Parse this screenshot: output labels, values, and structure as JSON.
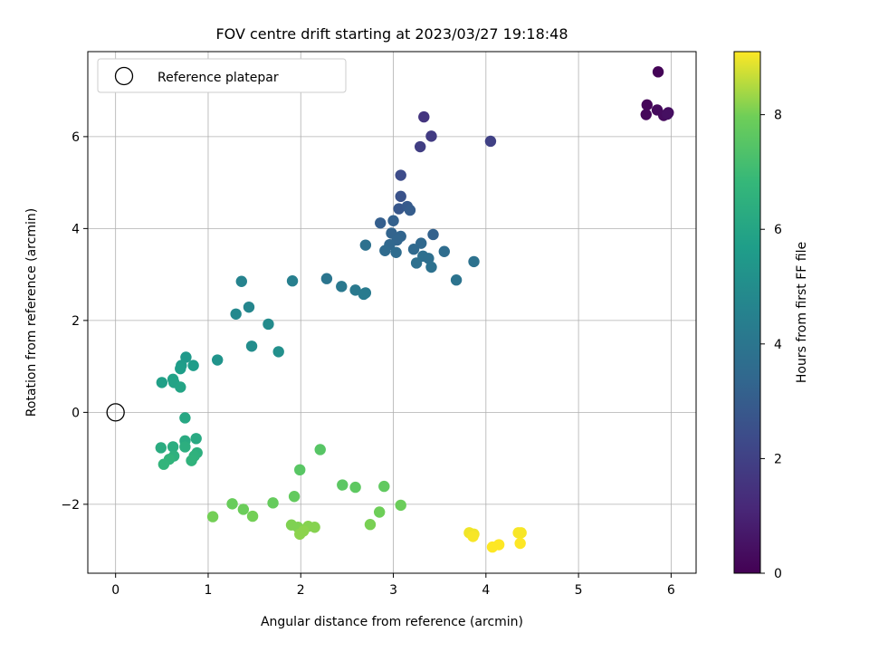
{
  "chart_data": {
    "type": "scatter",
    "title": "FOV centre drift starting at 2023/03/27 19:18:48",
    "xlabel": "Angular distance from reference (arcmin)",
    "ylabel": "Rotation from reference (arcmin)",
    "xlim": [
      -0.3,
      6.27
    ],
    "ylim": [
      -3.5,
      7.85
    ],
    "xticks": [
      0,
      1,
      2,
      3,
      4,
      5,
      6
    ],
    "yticks": [
      -2,
      0,
      2,
      4,
      6
    ],
    "ytick_labels": [
      "−2",
      "0",
      "2",
      "4",
      "6"
    ],
    "grid": true,
    "legend": {
      "position": "top-left",
      "entries": [
        "Reference platepar"
      ]
    },
    "reference_point": {
      "x": 0,
      "y": 0
    },
    "colormap": "viridis",
    "colorbar": {
      "label": "Hours from first FF file",
      "range": [
        0,
        9.1
      ],
      "ticks": [
        0,
        2,
        4,
        6,
        8
      ]
    },
    "points": [
      {
        "x": 5.86,
        "y": 7.41,
        "hours": 0.1
      },
      {
        "x": 5.74,
        "y": 6.69,
        "hours": 0.15
      },
      {
        "x": 5.73,
        "y": 6.48,
        "hours": 0.2
      },
      {
        "x": 5.85,
        "y": 6.58,
        "hours": 0.25
      },
      {
        "x": 5.92,
        "y": 6.46,
        "hours": 0.3
      },
      {
        "x": 5.97,
        "y": 6.52,
        "hours": 0.35
      },
      {
        "x": 5.96,
        "y": 6.49,
        "hours": 0.4
      },
      {
        "x": 3.33,
        "y": 6.43,
        "hours": 1.6
      },
      {
        "x": 3.41,
        "y": 6.01,
        "hours": 1.8
      },
      {
        "x": 3.29,
        "y": 5.78,
        "hours": 1.9
      },
      {
        "x": 4.05,
        "y": 5.9,
        "hours": 2.0
      },
      {
        "x": 3.08,
        "y": 5.16,
        "hours": 2.4
      },
      {
        "x": 3.08,
        "y": 4.7,
        "hours": 2.6
      },
      {
        "x": 3.06,
        "y": 4.43,
        "hours": 2.8
      },
      {
        "x": 3.15,
        "y": 4.48,
        "hours": 2.9
      },
      {
        "x": 3.18,
        "y": 4.4,
        "hours": 3.0
      },
      {
        "x": 2.86,
        "y": 4.12,
        "hours": 3.1
      },
      {
        "x": 3.0,
        "y": 4.17,
        "hours": 3.15
      },
      {
        "x": 3.43,
        "y": 3.87,
        "hours": 3.2
      },
      {
        "x": 2.98,
        "y": 3.9,
        "hours": 3.25
      },
      {
        "x": 3.08,
        "y": 3.83,
        "hours": 3.3
      },
      {
        "x": 3.04,
        "y": 3.75,
        "hours": 3.35
      },
      {
        "x": 2.96,
        "y": 3.65,
        "hours": 3.4
      },
      {
        "x": 3.3,
        "y": 3.68,
        "hours": 3.45
      },
      {
        "x": 3.22,
        "y": 3.55,
        "hours": 3.5
      },
      {
        "x": 2.91,
        "y": 3.52,
        "hours": 3.55
      },
      {
        "x": 3.03,
        "y": 3.48,
        "hours": 3.6
      },
      {
        "x": 3.55,
        "y": 3.5,
        "hours": 3.65
      },
      {
        "x": 3.32,
        "y": 3.4,
        "hours": 3.7
      },
      {
        "x": 3.38,
        "y": 3.35,
        "hours": 3.72
      },
      {
        "x": 3.25,
        "y": 3.25,
        "hours": 3.75
      },
      {
        "x": 3.41,
        "y": 3.16,
        "hours": 3.8
      },
      {
        "x": 2.7,
        "y": 3.64,
        "hours": 3.82
      },
      {
        "x": 3.87,
        "y": 3.28,
        "hours": 3.85
      },
      {
        "x": 3.68,
        "y": 2.88,
        "hours": 3.9
      },
      {
        "x": 2.28,
        "y": 2.91,
        "hours": 4.0
      },
      {
        "x": 2.44,
        "y": 2.74,
        "hours": 4.1
      },
      {
        "x": 2.59,
        "y": 2.66,
        "hours": 4.15
      },
      {
        "x": 2.7,
        "y": 2.6,
        "hours": 4.2
      },
      {
        "x": 2.68,
        "y": 2.57,
        "hours": 4.25
      },
      {
        "x": 1.91,
        "y": 2.86,
        "hours": 4.4
      },
      {
        "x": 1.36,
        "y": 2.85,
        "hours": 4.6
      },
      {
        "x": 1.44,
        "y": 2.29,
        "hours": 4.7
      },
      {
        "x": 1.3,
        "y": 2.14,
        "hours": 4.8
      },
      {
        "x": 1.65,
        "y": 1.92,
        "hours": 4.9
      },
      {
        "x": 1.47,
        "y": 1.44,
        "hours": 5.0
      },
      {
        "x": 1.76,
        "y": 1.32,
        "hours": 5.1
      },
      {
        "x": 1.1,
        "y": 1.14,
        "hours": 5.3
      },
      {
        "x": 0.76,
        "y": 1.2,
        "hours": 5.5
      },
      {
        "x": 0.71,
        "y": 1.02,
        "hours": 5.6
      },
      {
        "x": 0.84,
        "y": 1.02,
        "hours": 5.65
      },
      {
        "x": 0.7,
        "y": 0.95,
        "hours": 5.7
      },
      {
        "x": 0.5,
        "y": 0.65,
        "hours": 5.8
      },
      {
        "x": 0.62,
        "y": 0.72,
        "hours": 5.85
      },
      {
        "x": 0.63,
        "y": 0.65,
        "hours": 5.9
      },
      {
        "x": 0.7,
        "y": 0.55,
        "hours": 5.95
      },
      {
        "x": 0.75,
        "y": -0.12,
        "hours": 6.1
      },
      {
        "x": 0.87,
        "y": -0.57,
        "hours": 6.2
      },
      {
        "x": 0.75,
        "y": -0.62,
        "hours": 6.25
      },
      {
        "x": 0.49,
        "y": -0.77,
        "hours": 6.3
      },
      {
        "x": 0.62,
        "y": -0.75,
        "hours": 6.35
      },
      {
        "x": 0.75,
        "y": -0.75,
        "hours": 6.4
      },
      {
        "x": 0.88,
        "y": -0.88,
        "hours": 6.45
      },
      {
        "x": 0.63,
        "y": -0.95,
        "hours": 6.5
      },
      {
        "x": 0.85,
        "y": -0.95,
        "hours": 6.55
      },
      {
        "x": 0.82,
        "y": -1.05,
        "hours": 6.6
      },
      {
        "x": 0.58,
        "y": -1.02,
        "hours": 6.65
      },
      {
        "x": 0.52,
        "y": -1.13,
        "hours": 6.7
      },
      {
        "x": 2.21,
        "y": -0.81,
        "hours": 7.5
      },
      {
        "x": 1.99,
        "y": -1.25,
        "hours": 7.55
      },
      {
        "x": 2.45,
        "y": -1.58,
        "hours": 7.6
      },
      {
        "x": 2.59,
        "y": -1.63,
        "hours": 7.65
      },
      {
        "x": 2.9,
        "y": -1.61,
        "hours": 7.7
      },
      {
        "x": 1.93,
        "y": -1.83,
        "hours": 7.75
      },
      {
        "x": 1.7,
        "y": -1.97,
        "hours": 7.8
      },
      {
        "x": 1.26,
        "y": -1.99,
        "hours": 7.85
      },
      {
        "x": 1.38,
        "y": -2.11,
        "hours": 7.9
      },
      {
        "x": 3.08,
        "y": -2.02,
        "hours": 7.9
      },
      {
        "x": 2.85,
        "y": -2.17,
        "hours": 7.95
      },
      {
        "x": 1.48,
        "y": -2.26,
        "hours": 8.0
      },
      {
        "x": 1.05,
        "y": -2.27,
        "hours": 8.0
      },
      {
        "x": 2.75,
        "y": -2.44,
        "hours": 8.05
      },
      {
        "x": 1.9,
        "y": -2.45,
        "hours": 8.1
      },
      {
        "x": 1.97,
        "y": -2.5,
        "hours": 8.1
      },
      {
        "x": 2.08,
        "y": -2.48,
        "hours": 8.15
      },
      {
        "x": 2.15,
        "y": -2.5,
        "hours": 8.15
      },
      {
        "x": 2.03,
        "y": -2.58,
        "hours": 8.2
      },
      {
        "x": 1.99,
        "y": -2.65,
        "hours": 8.2
      },
      {
        "x": 3.82,
        "y": -2.62,
        "hours": 9.0
      },
      {
        "x": 3.87,
        "y": -2.65,
        "hours": 9.0
      },
      {
        "x": 4.35,
        "y": -2.62,
        "hours": 9.05
      },
      {
        "x": 4.38,
        "y": -2.62,
        "hours": 9.05
      },
      {
        "x": 3.86,
        "y": -2.7,
        "hours": 9.05
      },
      {
        "x": 4.14,
        "y": -2.88,
        "hours": 9.1
      },
      {
        "x": 4.07,
        "y": -2.93,
        "hours": 9.1
      },
      {
        "x": 4.37,
        "y": -2.85,
        "hours": 9.1
      }
    ]
  }
}
